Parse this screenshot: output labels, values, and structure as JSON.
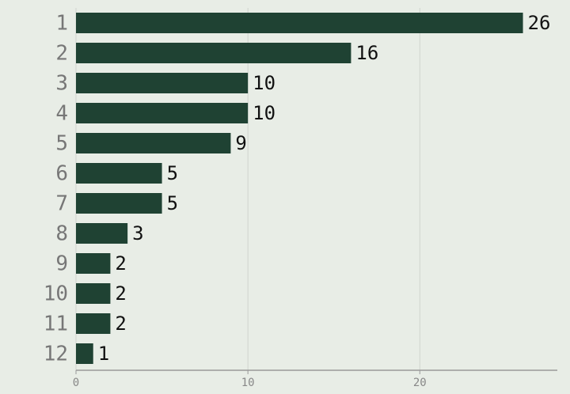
{
  "chart_data": {
    "type": "hbar",
    "categories": [
      "1",
      "2",
      "3",
      "4",
      "5",
      "6",
      "7",
      "8",
      "9",
      "10",
      "11",
      "12"
    ],
    "values": [
      26,
      16,
      10,
      10,
      9,
      5,
      5,
      3,
      2,
      2,
      2,
      1
    ],
    "color": "#1f4233",
    "xlim": [
      0,
      28
    ],
    "xticks": [
      0,
      10,
      20
    ],
    "grid": true
  }
}
